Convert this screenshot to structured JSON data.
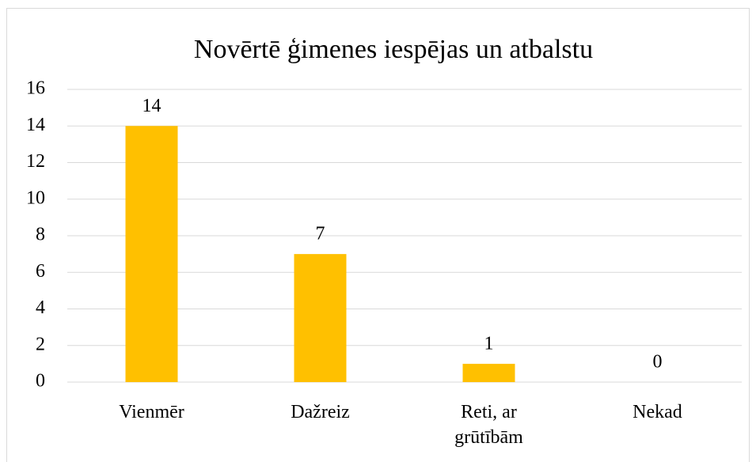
{
  "chart_data": {
    "type": "bar",
    "title": "Novērtē ģimenes iespējas un atbalstu",
    "categories": [
      "Vienmēr",
      "Dažreiz",
      "Reti, ar grūtībām",
      "Nekad"
    ],
    "values": [
      14,
      7,
      1,
      0
    ],
    "color": "#ffc000",
    "ylim": [
      0,
      16
    ],
    "yticks": [
      0,
      2,
      4,
      6,
      8,
      10,
      12,
      14,
      16
    ],
    "grid": true
  }
}
